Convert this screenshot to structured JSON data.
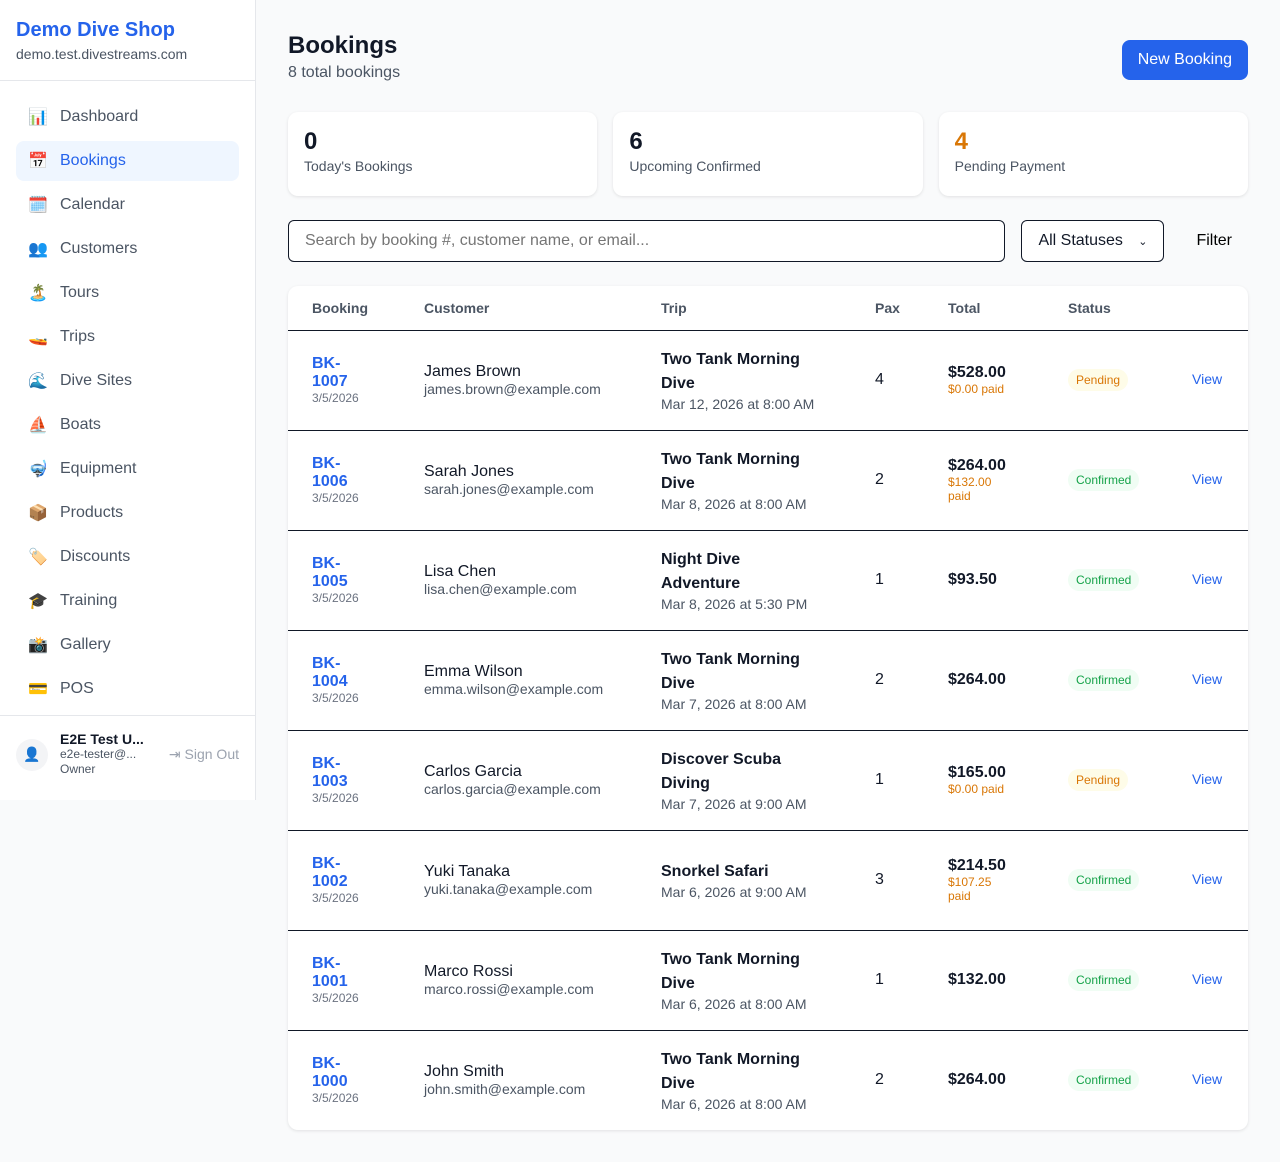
{
  "sidebar": {
    "shop_name": "Demo Dive Shop",
    "domain": "demo.test.divestreams.com",
    "items": [
      {
        "label": "Dashboard",
        "icon": "📊",
        "active": false
      },
      {
        "label": "Bookings",
        "icon": "📅",
        "active": true
      },
      {
        "label": "Calendar",
        "icon": "🗓️",
        "active": false
      },
      {
        "label": "Customers",
        "icon": "👥",
        "active": false
      },
      {
        "label": "Tours",
        "icon": "🏝️",
        "active": false
      },
      {
        "label": "Trips",
        "icon": "🚤",
        "active": false
      },
      {
        "label": "Dive Sites",
        "icon": "🌊",
        "active": false
      },
      {
        "label": "Boats",
        "icon": "⛵",
        "active": false
      },
      {
        "label": "Equipment",
        "icon": "🤿",
        "active": false
      },
      {
        "label": "Products",
        "icon": "📦",
        "active": false
      },
      {
        "label": "Discounts",
        "icon": "🏷️",
        "active": false
      },
      {
        "label": "Training",
        "icon": "🎓",
        "active": false
      },
      {
        "label": "Gallery",
        "icon": "📸",
        "active": false
      },
      {
        "label": "POS",
        "icon": "💳",
        "active": false
      }
    ],
    "user": {
      "name": "E2E Test U...",
      "email": "e2e-tester@...",
      "role": "Owner",
      "sign_out": "Sign Out"
    }
  },
  "header": {
    "title": "Bookings",
    "subtitle": "8 total bookings",
    "new_booking": "New Booking"
  },
  "stats": [
    {
      "value": "0",
      "label": "Today's Bookings",
      "color": "#111827"
    },
    {
      "value": "6",
      "label": "Upcoming Confirmed",
      "color": "#111827"
    },
    {
      "value": "4",
      "label": "Pending Payment",
      "color": "#d97706"
    }
  ],
  "filters": {
    "search_placeholder": "Search by booking #, customer name, or email...",
    "status": "All Statuses",
    "filter": "Filter"
  },
  "table": {
    "headers": [
      "Booking",
      "Customer",
      "Trip",
      "Pax",
      "Total",
      "Status",
      ""
    ],
    "rows": [
      {
        "id": "BK-1007",
        "date": "3/5/2026",
        "name": "James Brown",
        "email": "james.brown@example.com",
        "trip": "Two Tank Morning Dive",
        "when": "Mar 12, 2026 at 8:00 AM",
        "pax": "4",
        "total": "$528.00",
        "paid": "$0.00 paid",
        "status": "Pending",
        "action": "View"
      },
      {
        "id": "BK-1006",
        "date": "3/5/2026",
        "name": "Sarah Jones",
        "email": "sarah.jones@example.com",
        "trip": "Two Tank Morning Dive",
        "when": "Mar 8, 2026 at 8:00 AM",
        "pax": "2",
        "total": "$264.00",
        "paid": "$132.00 paid",
        "status": "Confirmed",
        "action": "View"
      },
      {
        "id": "BK-1005",
        "date": "3/5/2026",
        "name": "Lisa Chen",
        "email": "lisa.chen@example.com",
        "trip": "Night Dive Adventure",
        "when": "Mar 8, 2026 at 5:30 PM",
        "pax": "1",
        "total": "$93.50",
        "paid": "",
        "status": "Confirmed",
        "action": "View"
      },
      {
        "id": "BK-1004",
        "date": "3/5/2026",
        "name": "Emma Wilson",
        "email": "emma.wilson@example.com",
        "trip": "Two Tank Morning Dive",
        "when": "Mar 7, 2026 at 8:00 AM",
        "pax": "2",
        "total": "$264.00",
        "paid": "",
        "status": "Confirmed",
        "action": "View"
      },
      {
        "id": "BK-1003",
        "date": "3/5/2026",
        "name": "Carlos Garcia",
        "email": "carlos.garcia@example.com",
        "trip": "Discover Scuba Diving",
        "when": "Mar 7, 2026 at 9:00 AM",
        "pax": "1",
        "total": "$165.00",
        "paid": "$0.00 paid",
        "status": "Pending",
        "action": "View"
      },
      {
        "id": "BK-1002",
        "date": "3/5/2026",
        "name": "Yuki Tanaka",
        "email": "yuki.tanaka@example.com",
        "trip": "Snorkel Safari",
        "when": "Mar 6, 2026 at 9:00 AM",
        "pax": "3",
        "total": "$214.50",
        "paid": "$107.25 paid",
        "status": "Confirmed",
        "action": "View"
      },
      {
        "id": "BK-1001",
        "date": "3/5/2026",
        "name": "Marco Rossi",
        "email": "marco.rossi@example.com",
        "trip": "Two Tank Morning Dive",
        "when": "Mar 6, 2026 at 8:00 AM",
        "pax": "1",
        "total": "$132.00",
        "paid": "",
        "status": "Confirmed",
        "action": "View"
      },
      {
        "id": "BK-1000",
        "date": "3/5/2026",
        "name": "John Smith",
        "email": "john.smith@example.com",
        "trip": "Two Tank Morning Dive",
        "when": "Mar 6, 2026 at 8:00 AM",
        "pax": "2",
        "total": "$264.00",
        "paid": "",
        "status": "Confirmed",
        "action": "View"
      }
    ]
  }
}
